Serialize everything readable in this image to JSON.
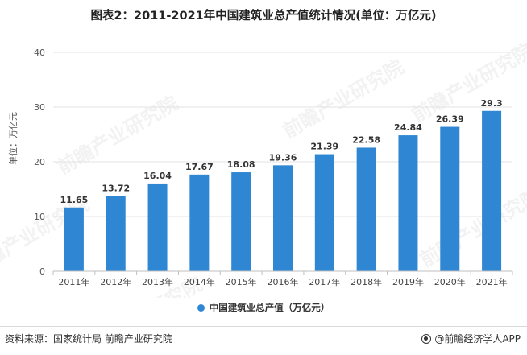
{
  "title": "图表2：2011-2021年中国建筑业总产值统计情况(单位：万亿元)",
  "ylabel_text": "单位：万亿元",
  "legend": {
    "label": "中国建筑业总产值（万亿元）",
    "color": "#2f86d3"
  },
  "footer": {
    "source": "资料来源：国家统计局 前瞻产业研究院",
    "brand": "@前瞻经济学人APP"
  },
  "watermark": "前瞻产业研究院",
  "chart_data": {
    "type": "bar",
    "categories": [
      "2011年",
      "2012年",
      "2013年",
      "2014年",
      "2015年",
      "2016年",
      "2017年",
      "2018年",
      "2019年",
      "2020年",
      "2021年"
    ],
    "series": [
      {
        "name": "中国建筑业总产值（万亿元）",
        "values": [
          11.65,
          13.72,
          16.04,
          17.67,
          18.08,
          19.36,
          21.39,
          22.58,
          24.84,
          26.39,
          29.3
        ],
        "labels": [
          "11.65",
          "13.72",
          "16.04",
          "17.67",
          "18.08",
          "19.36",
          "21.39",
          "22.58",
          "24.84",
          "26.39",
          "29.3"
        ]
      }
    ],
    "ylabel": "单位：万亿元",
    "ylim": [
      0,
      40
    ],
    "yticks": [
      0,
      10,
      20,
      30,
      40
    ],
    "grid": true,
    "legend_position": "bottom"
  }
}
